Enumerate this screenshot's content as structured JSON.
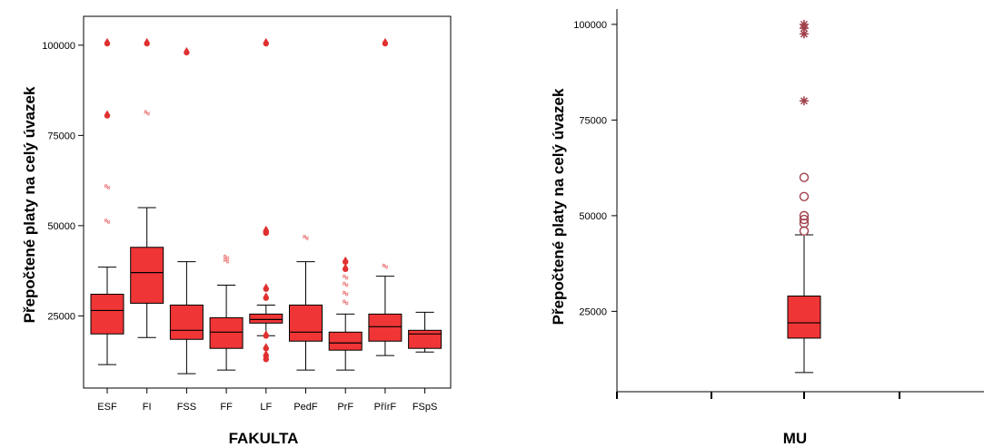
{
  "colors": {
    "box_fill": "#ef3535",
    "outlier": "#e03030",
    "extreme_mu": "#a0404a"
  },
  "chart_data": [
    {
      "type": "boxplot",
      "xlabel": "FAKULTA",
      "ylabel": "Přepočtené platy na celý úvazek",
      "ylim": [
        5000,
        108000
      ],
      "yticks": [
        25000,
        50000,
        75000,
        100000
      ],
      "grid": false,
      "categories": [
        "ESF",
        "FI",
        "FSS",
        "FF",
        "LF",
        "PedF",
        "PrF",
        "PřírF",
        "FSpS"
      ],
      "boxes": [
        {
          "category": "ESF",
          "min": 11500,
          "q1": 20000,
          "median": 26500,
          "q3": 31000,
          "max": 38500
        },
        {
          "category": "FI",
          "min": 19000,
          "q1": 28500,
          "median": 37000,
          "q3": 44000,
          "max": 55000
        },
        {
          "category": "FSS",
          "min": 9000,
          "q1": 18500,
          "median": 21000,
          "q3": 28000,
          "max": 40000
        },
        {
          "category": "FF",
          "min": 10000,
          "q1": 16000,
          "median": 20500,
          "q3": 24500,
          "max": 33500
        },
        {
          "category": "LF",
          "min": 19500,
          "q1": 23000,
          "median": 24000,
          "q3": 25500,
          "max": 28000
        },
        {
          "category": "PedF",
          "min": 10000,
          "q1": 18000,
          "median": 20500,
          "q3": 28000,
          "max": 40000
        },
        {
          "category": "PrF",
          "min": 10000,
          "q1": 15500,
          "median": 17500,
          "q3": 20500,
          "max": 25500
        },
        {
          "category": "PřírF",
          "min": 14000,
          "q1": 18000,
          "median": 22000,
          "q3": 25500,
          "max": 36000
        },
        {
          "category": "FSpS",
          "min": 15000,
          "q1": 16000,
          "median": 20000,
          "q3": 21000,
          "max": 26000
        }
      ],
      "outliers": [
        {
          "category": "ESF",
          "values": [
            51500,
            61000
          ]
        },
        {
          "category": "FI",
          "values": [
            81500
          ]
        },
        {
          "category": "FF",
          "values": [
            40500,
            41500
          ]
        },
        {
          "category": "PedF",
          "values": [
            47000
          ]
        },
        {
          "category": "PrF",
          "values": [
            29000,
            31500,
            34000,
            36000
          ]
        },
        {
          "category": "PřírF",
          "values": [
            39000
          ]
        }
      ],
      "extremes": [
        {
          "category": "ESF",
          "values": [
            81000,
            101000
          ]
        },
        {
          "category": "FI",
          "values": [
            101000
          ]
        },
        {
          "category": "FSS",
          "values": [
            98500
          ]
        },
        {
          "category": "LF",
          "values": [
            13500,
            14500,
            16500,
            20000,
            30500,
            33000,
            48500,
            49000,
            101000
          ]
        },
        {
          "category": "PrF",
          "values": [
            38500,
            40500
          ]
        },
        {
          "category": "PřírF",
          "values": [
            101000
          ]
        }
      ]
    },
    {
      "type": "boxplot",
      "xlabel": "MU",
      "ylabel": "Přepočtené platy na celý úvazek",
      "ylim": [
        4000,
        104000
      ],
      "yticks": [
        25000,
        50000,
        75000,
        100000
      ],
      "grid": false,
      "categories": [
        "MU"
      ],
      "boxes": [
        {
          "category": "MU",
          "min": 9000,
          "q1": 18000,
          "median": 22000,
          "q3": 29000,
          "max": 45000
        }
      ],
      "outliers": [
        {
          "category": "MU",
          "values": [
            46000,
            48000,
            49000,
            50000,
            55000,
            60000
          ]
        }
      ],
      "extremes": [
        {
          "category": "MU",
          "values": [
            80000,
            97500,
            99000,
            100000
          ]
        }
      ]
    }
  ]
}
